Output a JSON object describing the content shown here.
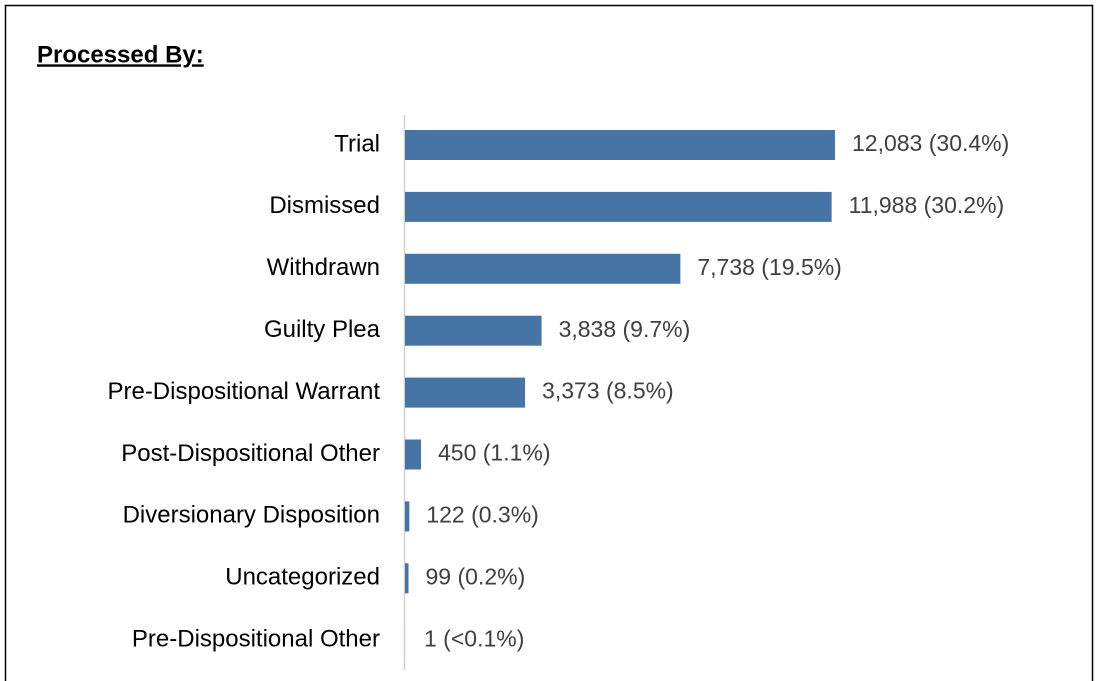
{
  "chart_data": {
    "type": "bar",
    "orientation": "horizontal",
    "title": "Processed By:",
    "categories": [
      "Trial",
      "Dismissed",
      "Withdrawn",
      "Guilty Plea",
      "Pre-Dispositional Warrant",
      "Post-Dispositional Other",
      "Diversionary Disposition",
      "Uncategorized",
      "Pre-Dispositional Other"
    ],
    "values": [
      12083,
      11988,
      7738,
      3838,
      3373,
      450,
      122,
      99,
      1
    ],
    "value_labels": [
      "12,083 (30.4%)",
      "11,988 (30.2%)",
      "7,738 (19.5%)",
      "3,838 (9.7%)",
      "3,373 (8.5%)",
      "450 (1.1%)",
      "122 (0.3%)",
      "99 (0.2%)",
      "1 (<0.1%)"
    ],
    "color": "#4674a4"
  }
}
